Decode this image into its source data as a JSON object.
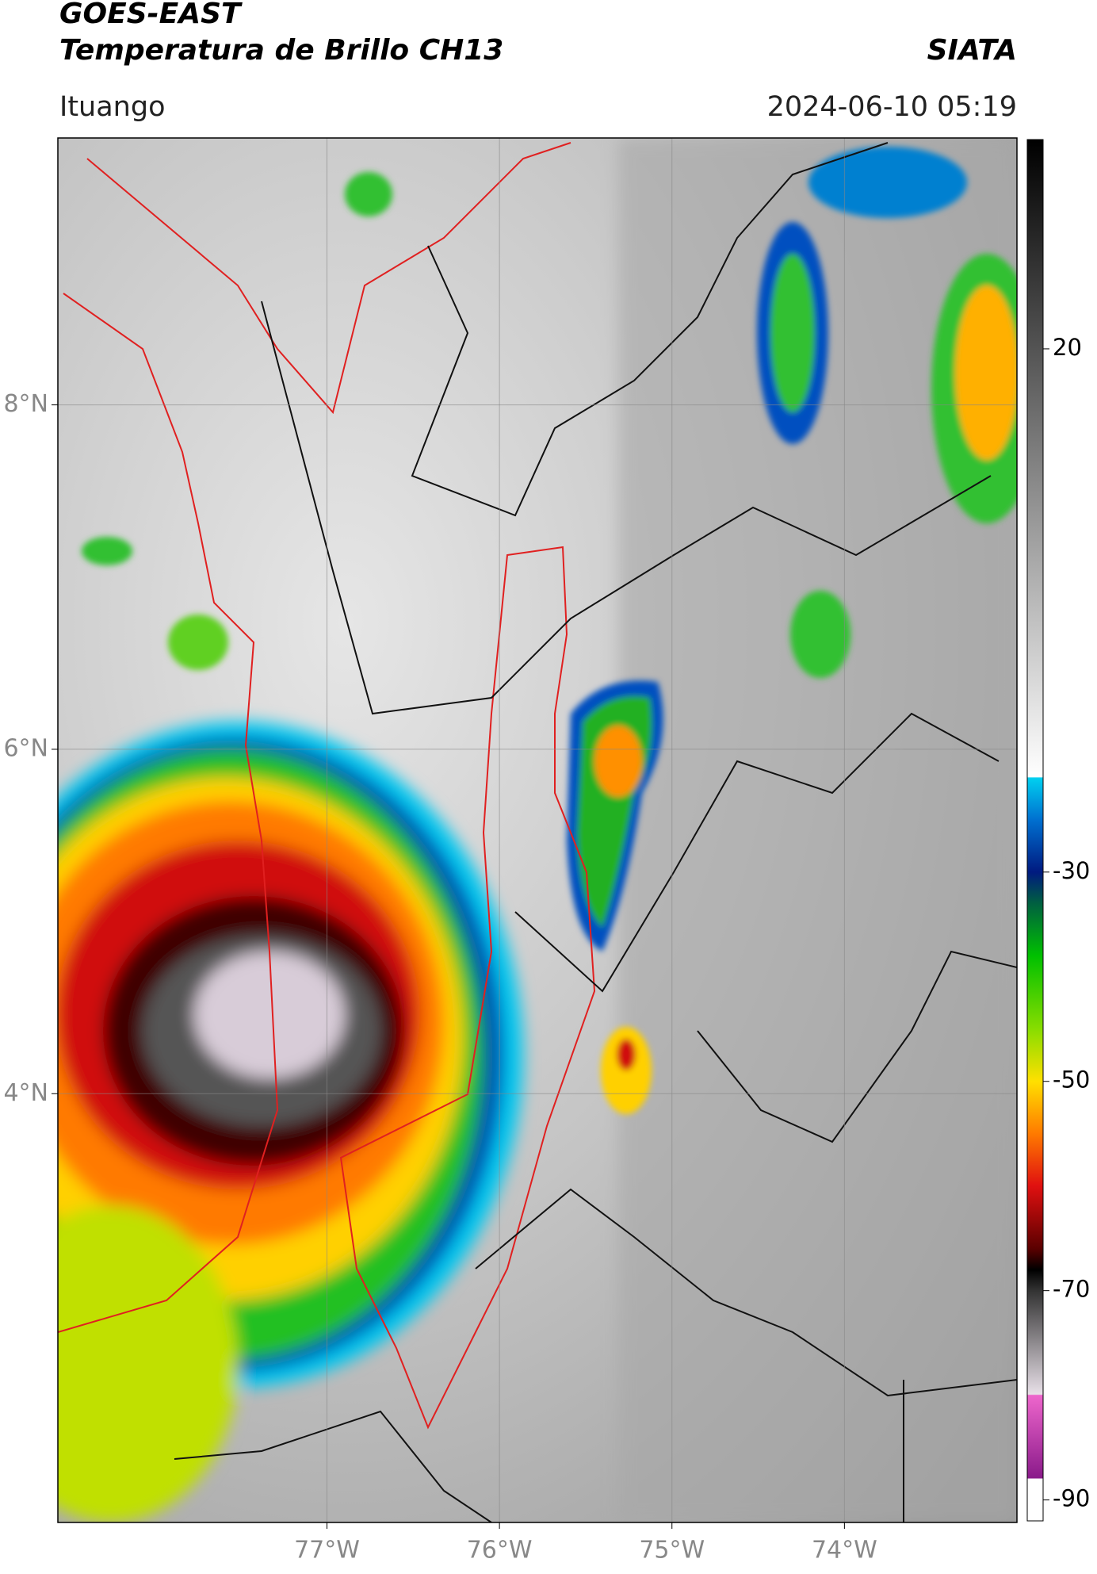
{
  "header": {
    "title": "GOES-EAST",
    "subtitle": "Temperatura de Brillo CH13",
    "agency": "SIATA",
    "location": "Ituango",
    "datetime": "2024-06-10 05:19"
  },
  "map": {
    "xlim": [
      -78.56,
      -73.0
    ],
    "ylim": [
      1.51,
      9.55
    ],
    "xticks": [
      {
        "value": -77,
        "label": "77°W"
      },
      {
        "value": -76,
        "label": "76°W"
      },
      {
        "value": -75,
        "label": "75°W"
      },
      {
        "value": -74,
        "label": "74°W"
      }
    ],
    "yticks": [
      {
        "value": 4,
        "label": "4°N"
      },
      {
        "value": 6,
        "label": "6°N"
      },
      {
        "value": 8,
        "label": "8°N"
      }
    ],
    "grid": true
  },
  "colorbar": {
    "lim": [
      -92,
      40
    ],
    "ticks": [
      -90,
      -70,
      -50,
      -30,
      20
    ],
    "colormap": [
      {
        "value": -92,
        "color": "#ffffff"
      },
      {
        "value": -88,
        "color": "#ffffff"
      },
      {
        "value": -87.9,
        "color": "#8a1a8a"
      },
      {
        "value": -80,
        "color": "#ee66cc"
      },
      {
        "value": -79.9,
        "color": "#e8e0e8"
      },
      {
        "value": -70,
        "color": "#333333"
      },
      {
        "value": -68,
        "color": "#000000"
      },
      {
        "value": -66,
        "color": "#5a0000"
      },
      {
        "value": -60,
        "color": "#e01010"
      },
      {
        "value": -55,
        "color": "#ff7a00"
      },
      {
        "value": -50,
        "color": "#ffe000"
      },
      {
        "value": -45,
        "color": "#88dd00"
      },
      {
        "value": -38,
        "color": "#00c000"
      },
      {
        "value": -33,
        "color": "#006040"
      },
      {
        "value": -30,
        "color": "#001a80"
      },
      {
        "value": -25,
        "color": "#0070d0"
      },
      {
        "value": -21,
        "color": "#00d0f0"
      },
      {
        "value": -20.9,
        "color": "#ffffff"
      },
      {
        "value": 40,
        "color": "#000000"
      }
    ]
  }
}
